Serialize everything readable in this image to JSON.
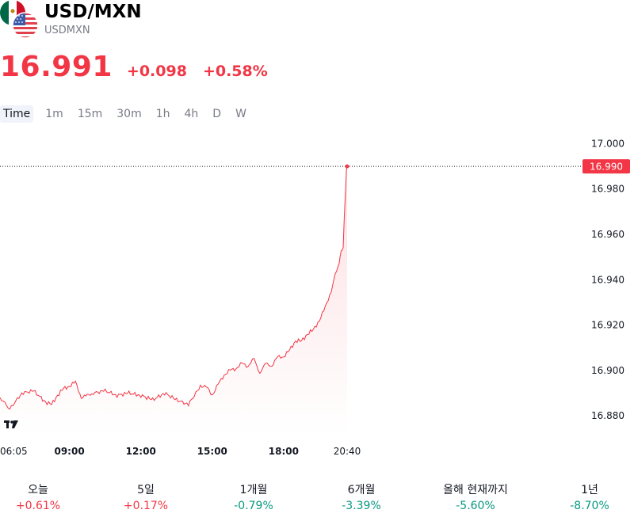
{
  "header": {
    "symbol": "USD/MXN",
    "ticker": "USDMXN",
    "price": "16.991",
    "change": "+0.098",
    "change_pct": "+0.58%"
  },
  "intervals": [
    "Time",
    "1m",
    "15m",
    "30m",
    "1h",
    "4h",
    "D",
    "W"
  ],
  "colors": {
    "up": "#f23645",
    "down": "#089981",
    "accent": "#f23645"
  },
  "icons": {
    "flags": "mexico-usa-flag-icon",
    "logo": "tradingview-logo-icon"
  },
  "chart_data": {
    "type": "area",
    "x": [
      "06:05",
      "06:30",
      "07:00",
      "07:30",
      "08:00",
      "08:15",
      "08:30",
      "08:45",
      "09:00",
      "09:15",
      "09:30",
      "09:45",
      "10:00",
      "10:30",
      "11:00",
      "11:30",
      "12:00",
      "12:30",
      "13:00",
      "13:30",
      "14:00",
      "14:30",
      "14:45",
      "15:00",
      "15:15",
      "15:30",
      "15:45",
      "16:00",
      "16:15",
      "16:30",
      "16:45",
      "17:00",
      "17:15",
      "17:30",
      "17:45",
      "18:00",
      "18:15",
      "18:30",
      "18:45",
      "19:00",
      "19:15",
      "19:30",
      "19:45",
      "20:00",
      "20:10",
      "20:20",
      "20:25",
      "20:30",
      "20:35",
      "20:38",
      "20:40"
    ],
    "values": [
      16.888,
      16.883,
      16.89,
      16.891,
      16.886,
      16.885,
      16.889,
      16.892,
      16.893,
      16.895,
      16.888,
      16.889,
      16.89,
      16.891,
      16.889,
      16.89,
      16.889,
      16.887,
      16.89,
      16.887,
      16.885,
      16.893,
      16.893,
      16.889,
      16.894,
      16.898,
      16.9,
      16.901,
      16.903,
      16.902,
      16.905,
      16.899,
      16.903,
      16.902,
      16.906,
      16.906,
      16.909,
      16.913,
      16.913,
      16.916,
      16.918,
      16.922,
      16.928,
      16.935,
      16.942,
      16.948,
      16.952,
      16.955,
      16.975,
      16.988,
      16.99
    ],
    "x_ticks": [
      "06:05",
      "09:00",
      "12:00",
      "15:00",
      "18:00",
      "20:40"
    ],
    "y_ticks": [
      "17.000",
      "16.980",
      "16.960",
      "16.940",
      "16.920",
      "16.900",
      "16.880"
    ],
    "ylim": [
      16.872,
      17.004
    ],
    "last_value_label": "16.990",
    "grid": false
  },
  "performance": [
    {
      "label": "오늘",
      "value": "+0.61%",
      "dir": "up"
    },
    {
      "label": "5일",
      "value": "+0.17%",
      "dir": "up"
    },
    {
      "label": "1개월",
      "value": "-0.79%",
      "dir": "down"
    },
    {
      "label": "6개월",
      "value": "-3.39%",
      "dir": "down"
    },
    {
      "label": "올해 현재까지",
      "value": "-5.60%",
      "dir": "down"
    },
    {
      "label": "1년",
      "value": "-8.70%",
      "dir": "down"
    }
  ]
}
